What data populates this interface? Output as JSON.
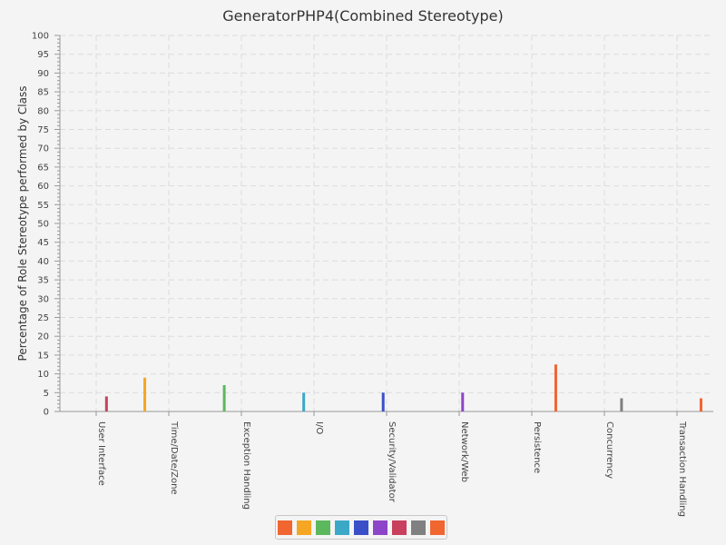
{
  "chart_data": {
    "type": "bar",
    "title": "GeneratorPHP4(Combined Stereotype)",
    "ylabel": "Percentage of Role Stereotype performed by Class",
    "xlabel": "",
    "ylim": [
      0,
      100
    ],
    "yticks": [
      0,
      5,
      10,
      15,
      20,
      25,
      30,
      35,
      40,
      45,
      50,
      55,
      60,
      65,
      70,
      75,
      80,
      85,
      90,
      95,
      100
    ],
    "grid": true,
    "legend_placement": "bottom",
    "categories": [
      "User Interface",
      "Time/Date/Zone",
      "Exception Handling",
      "I/O",
      "Security/Validator",
      "Network/Web",
      "Persistence",
      "Concurrency",
      "Transaction Handling"
    ],
    "series": [
      {
        "color": "#f06530",
        "values": [
          0,
          0,
          0,
          0,
          0,
          0,
          0,
          0,
          0
        ]
      },
      {
        "color": "#f5a623",
        "values": [
          0,
          9,
          0,
          0,
          0,
          0,
          0,
          0,
          0
        ]
      },
      {
        "color": "#5cb85c",
        "values": [
          0,
          0,
          7,
          0,
          0,
          0,
          0,
          0,
          0
        ]
      },
      {
        "color": "#3ca8c8",
        "values": [
          0,
          0,
          0,
          5,
          0,
          0,
          0,
          0,
          0
        ]
      },
      {
        "color": "#3a4fc8",
        "values": [
          0,
          0,
          0,
          0,
          5,
          0,
          0,
          0,
          0
        ]
      },
      {
        "color": "#8e44c8",
        "values": [
          0,
          0,
          0,
          0,
          0,
          5,
          0,
          0,
          0
        ]
      },
      {
        "color": "#c8405e",
        "values": [
          4,
          0,
          0,
          0,
          0,
          0,
          0,
          0,
          0
        ]
      },
      {
        "color": "#808080",
        "values": [
          0,
          0,
          0,
          0,
          0,
          0,
          0,
          3.5,
          0
        ]
      },
      {
        "color": "#f06530",
        "values": [
          0,
          0,
          0,
          0,
          0,
          0,
          12.5,
          0,
          3.5
        ]
      }
    ]
  }
}
